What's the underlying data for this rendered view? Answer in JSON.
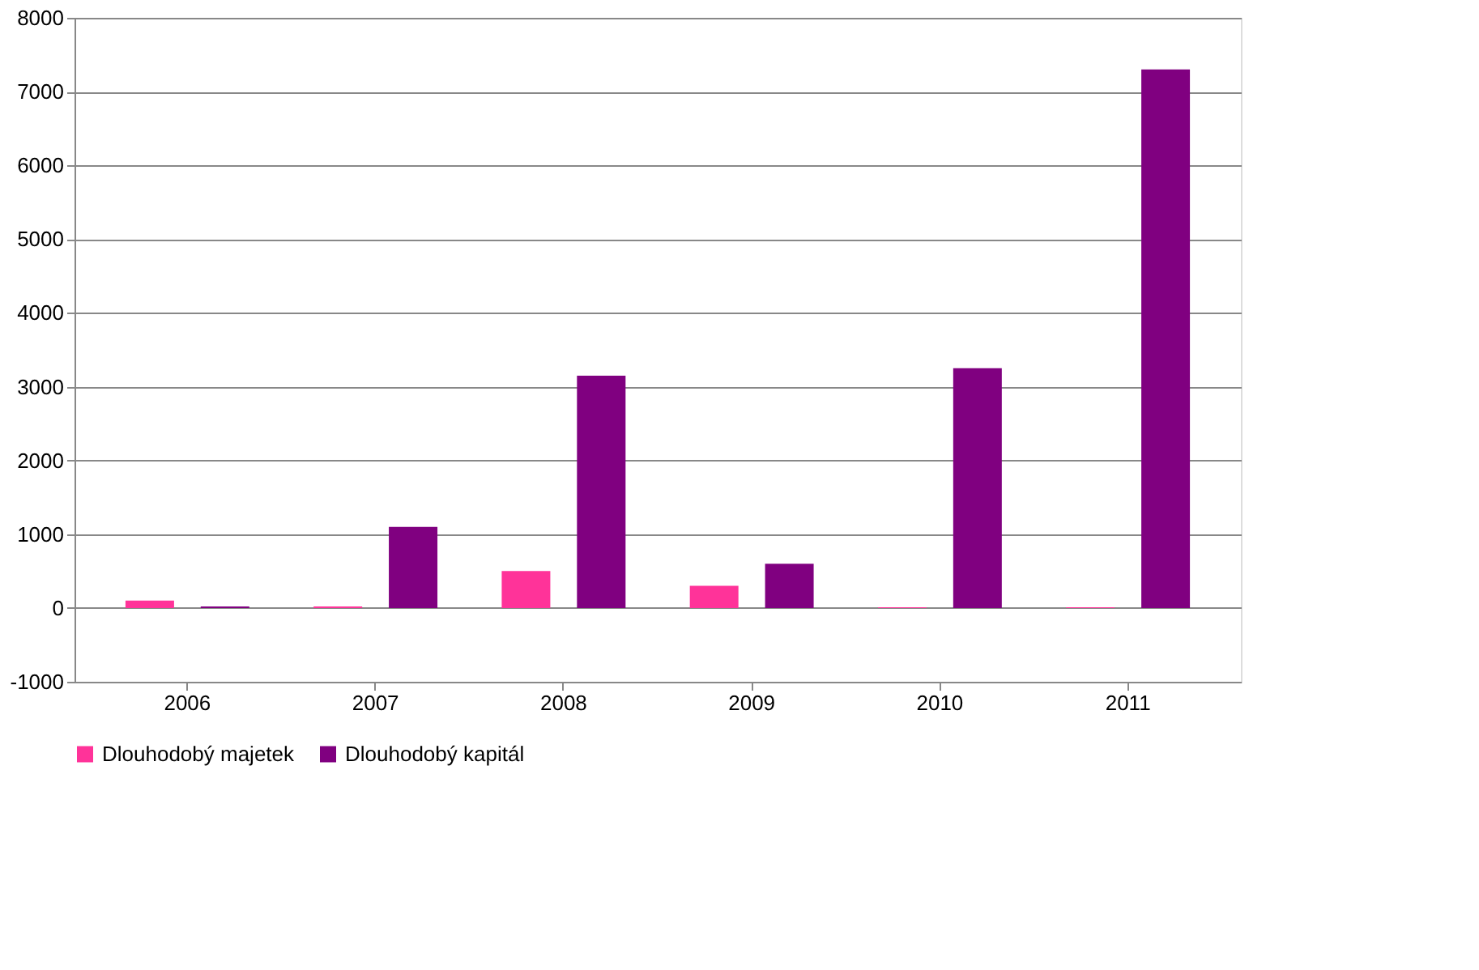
{
  "chart_data": {
    "type": "bar",
    "categories": [
      "2006",
      "2007",
      "2008",
      "2009",
      "2010",
      "2011"
    ],
    "series": [
      {
        "name": "Dlouhodobý  majetek",
        "color": "#ff3399",
        "values": [
          100,
          20,
          500,
          300,
          10,
          10
        ]
      },
      {
        "name": "Dlouhodobý  kapitál",
        "color": "#800080",
        "values": [
          20,
          1100,
          3150,
          600,
          3250,
          7300
        ]
      }
    ],
    "ylim": [
      -1000,
      8000
    ],
    "yticks": [
      -1000,
      0,
      1000,
      2000,
      3000,
      4000,
      5000,
      6000,
      7000,
      8000
    ],
    "grid": "y",
    "legend": "bottom"
  }
}
